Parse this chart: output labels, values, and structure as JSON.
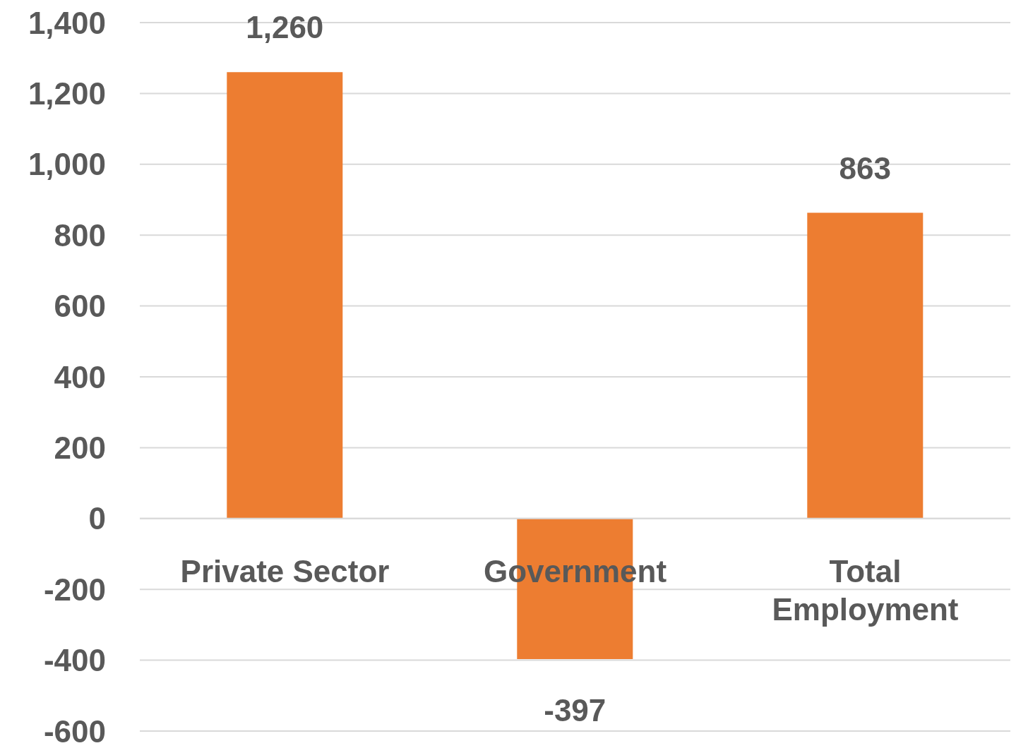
{
  "chart_data": {
    "type": "bar",
    "categories": [
      "Private Sector",
      "Government",
      "Total Employment"
    ],
    "values": [
      1260,
      -397,
      863
    ],
    "value_labels": [
      "1,260",
      "-397",
      "863"
    ],
    "color": "#ed7d31",
    "ylim": [
      -600,
      1400
    ],
    "yticks": [
      {
        "value": -600,
        "label": "-600"
      },
      {
        "value": -400,
        "label": "-400"
      },
      {
        "value": -200,
        "label": "-200"
      },
      {
        "value": 0,
        "label": "0"
      },
      {
        "value": 200,
        "label": "200"
      },
      {
        "value": 400,
        "label": "400"
      },
      {
        "value": 600,
        "label": "600"
      },
      {
        "value": 800,
        "label": "800"
      },
      {
        "value": 1000,
        "label": "1,000"
      },
      {
        "value": 1200,
        "label": "1,200"
      },
      {
        "value": 1400,
        "label": "1,400"
      }
    ],
    "grid": "y",
    "legend": false
  }
}
